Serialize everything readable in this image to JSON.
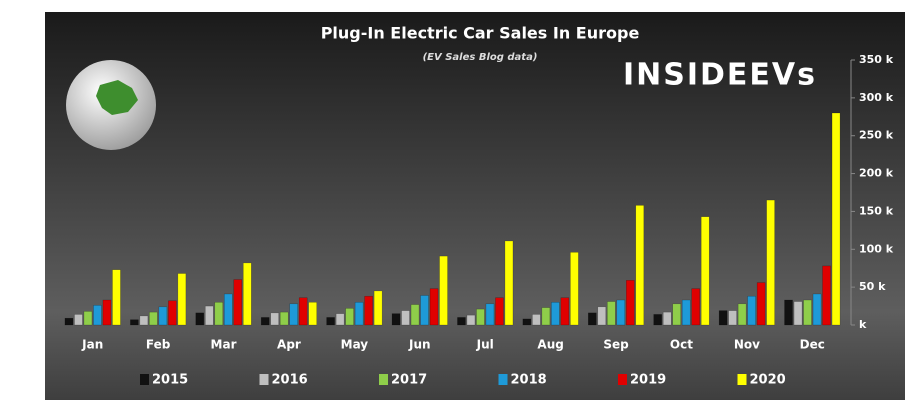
{
  "chart_data": {
    "type": "bar",
    "title": "Plug-In Electric Car Sales In Europe",
    "subtitle": "(EV Sales Blog data)",
    "logo": "INSIDEEVs",
    "categories": [
      "Jan",
      "Feb",
      "Mar",
      "Apr",
      "May",
      "Jun",
      "Jul",
      "Aug",
      "Sep",
      "Oct",
      "Nov",
      "Dec"
    ],
    "series": [
      {
        "name": "2015",
        "color": "#111111",
        "values": [
          9000,
          7000,
          16000,
          10000,
          10000,
          15000,
          10000,
          8000,
          16000,
          14000,
          19000,
          33000
        ]
      },
      {
        "name": "2016",
        "color": "#bfbfbf",
        "values": [
          14000,
          12000,
          25000,
          16000,
          15000,
          19000,
          13000,
          14000,
          24000,
          17000,
          19000,
          31000
        ]
      },
      {
        "name": "2017",
        "color": "#8fce4a",
        "values": [
          18000,
          17000,
          30000,
          17000,
          22000,
          27000,
          21000,
          23000,
          31000,
          28000,
          28000,
          33000
        ]
      },
      {
        "name": "2018",
        "color": "#1e9ad8",
        "values": [
          26000,
          24000,
          41000,
          28000,
          30000,
          39000,
          28000,
          30000,
          33000,
          33000,
          38000,
          41000
        ]
      },
      {
        "name": "2019",
        "color": "#e00000",
        "values": [
          33000,
          32000,
          60000,
          36000,
          38000,
          48000,
          36000,
          36000,
          59000,
          48000,
          56000,
          78000
        ]
      },
      {
        "name": "2020",
        "color": "#ffff00",
        "values": [
          73000,
          68000,
          82000,
          30000,
          45000,
          91000,
          111000,
          96000,
          158000,
          143000,
          165000,
          280000
        ]
      }
    ],
    "ylim": [
      0,
      350000
    ],
    "yticks": [
      {
        "value": 0,
        "label": "k"
      },
      {
        "value": 50000,
        "label": "50 k"
      },
      {
        "value": 100000,
        "label": "100 k"
      },
      {
        "value": 150000,
        "label": "150 k"
      },
      {
        "value": 200000,
        "label": "200 k"
      },
      {
        "value": 250000,
        "label": "250 k"
      },
      {
        "value": 300000,
        "label": "300 k"
      },
      {
        "value": 350000,
        "label": "350 k"
      }
    ],
    "grid": false
  }
}
